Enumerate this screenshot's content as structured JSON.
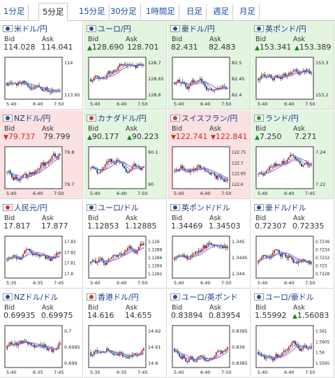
{
  "tabs": [
    "1分足",
    "5分足",
    "15分足",
    "30分足",
    "1時間足",
    "日足",
    "週足",
    "月足"
  ],
  "active_tab": 1,
  "bid_label": "Bid",
  "ask_label": "Ask",
  "cards": [
    {
      "title": "米ドル/円",
      "bid": "114.028",
      "ask": "114.041",
      "state": "none",
      "bid_arrow": "",
      "ask_arrow": "",
      "y_ticks": [
        "114",
        "113.95"
      ],
      "x_ticks": [
        "5:40",
        "6:40",
        "7:50"
      ],
      "flag": "us"
    },
    {
      "title": "ユーロ/円",
      "bid": "128.690",
      "ask": "128.701",
      "state": "up",
      "bid_arrow": "up",
      "ask_arrow": "",
      "y_ticks": [
        "128.7",
        "128.65",
        "128.6"
      ],
      "x_ticks": [
        "5:40",
        "6:40",
        "7:50"
      ],
      "flag": "eu"
    },
    {
      "title": "豪ドル/円",
      "bid": "82.431",
      "ask": "82.483",
      "state": "up",
      "bid_arrow": "",
      "ask_arrow": "",
      "y_ticks": [
        "82.5",
        "82.45",
        "82.4"
      ],
      "x_ticks": [
        "5:40",
        "6:40",
        "7:50"
      ],
      "flag": "au"
    },
    {
      "title": "英ポンド/円",
      "bid": "153.341",
      "ask": "153.389",
      "state": "up",
      "bid_arrow": "up",
      "ask_arrow": "up",
      "y_ticks": [
        "153.3",
        "153.2"
      ],
      "x_ticks": [
        "5:40",
        "6:40",
        "7:50"
      ],
      "flag": "gb"
    },
    {
      "title": "NZドル/円",
      "bid": "79.737",
      "ask": "79.799",
      "state": "down",
      "bid_arrow": "down",
      "ask_arrow": "",
      "y_ticks": [
        "79.8",
        "79.7"
      ],
      "x_ticks": [
        "5:40",
        "6:40",
        "7:50"
      ],
      "flag": "nz"
    },
    {
      "title": "カナダドル/円",
      "bid": "90.177",
      "ask": "90.223",
      "state": "up",
      "bid_arrow": "up",
      "ask_arrow": "up",
      "y_ticks": [
        "90.1",
        "90"
      ],
      "x_ticks": [
        "5:40",
        "6:40",
        "7:50"
      ],
      "flag": "ca"
    },
    {
      "title": "スイスフラン/円",
      "bid": "122.741",
      "ask": "122.841",
      "state": "down",
      "bid_arrow": "down",
      "ask_arrow": "down",
      "y_ticks": [
        "122.75",
        "122.7",
        "122.65",
        "122.6"
      ],
      "x_ticks": [
        "5:40",
        "6:40",
        "7:50"
      ],
      "flag": "ch"
    },
    {
      "title": "ランド/円",
      "bid": "7.250",
      "ask": "7.271",
      "state": "up",
      "bid_arrow": "up",
      "ask_arrow": "",
      "y_ticks": [
        "7.24",
        "7.22"
      ],
      "x_ticks": [
        "5:40",
        "6:40",
        "7:45"
      ],
      "flag": "za"
    },
    {
      "title": "人民元/円",
      "bid": "17.817",
      "ask": "17.877",
      "state": "none",
      "bid_arrow": "",
      "ask_arrow": "",
      "y_ticks": [
        "17.83",
        "17.82",
        "17.81",
        "17.8"
      ],
      "x_ticks": [
        "5:35",
        "6:35",
        "7:45"
      ],
      "flag": "cn"
    },
    {
      "title": "ユーロ/ドル",
      "bid": "1.12853",
      "ask": "1.12885",
      "state": "none",
      "bid_arrow": "",
      "ask_arrow": "",
      "y_ticks": [
        "1.129",
        "1.1288",
        "1.1286",
        "1.1284",
        "1.1282"
      ],
      "x_ticks": [
        "5:40",
        "6:40",
        "7:50"
      ],
      "flag": "eu"
    },
    {
      "title": "英ポンド/ドル",
      "bid": "1.34469",
      "ask": "1.34503",
      "state": "none",
      "bid_arrow": "",
      "ask_arrow": "",
      "y_ticks": [
        "1.345",
        "1.3445",
        "1.344"
      ],
      "x_ticks": [
        "5:40",
        "6:40",
        "7:50"
      ],
      "flag": "gb"
    },
    {
      "title": "豪ドル/ドル",
      "bid": "0.72307",
      "ask": "0.72335",
      "state": "none",
      "bid_arrow": "",
      "ask_arrow": "",
      "y_ticks": [
        "0.7236",
        "0.7234",
        "0.7232",
        "0.723",
        "0.7228"
      ],
      "x_ticks": [
        "5:40",
        "6:40",
        "7:50"
      ],
      "flag": "au"
    },
    {
      "title": "NZドル/ドル",
      "bid": "0.69935",
      "ask": "0.69975",
      "state": "none",
      "bid_arrow": "",
      "ask_arrow": "",
      "y_ticks": [
        "0.7",
        "0.6995",
        "0.699"
      ],
      "x_ticks": [
        "5:40",
        "6:35",
        "7:45"
      ],
      "flag": "nz"
    },
    {
      "title": "香港ドル/円",
      "bid": "14.616",
      "ask": "14.655",
      "state": "none",
      "bid_arrow": "",
      "ask_arrow": "",
      "y_ticks": [
        "14.62",
        "14.61",
        "14.6"
      ],
      "x_ticks": [
        "5:35",
        "6:35",
        "7:45"
      ],
      "flag": "hk"
    },
    {
      "title": "ユーロ/英ポンド",
      "bid": "0.83894",
      "ask": "0.83954",
      "state": "none",
      "bid_arrow": "",
      "ask_arrow": "",
      "y_ticks": [
        "0.8395",
        "0.839",
        "0.8385"
      ],
      "x_ticks": [
        "5:40",
        "6:40",
        "7:50"
      ],
      "flag": "eu"
    },
    {
      "title": "ユーロ/豪ドル",
      "bid": "1.55992",
      "ask": "1.56083",
      "state": "none",
      "bid_arrow": "",
      "ask_arrow": "up",
      "y_ticks": [
        "1.561",
        "1.5605",
        "1.56",
        "1.5595"
      ],
      "x_ticks": [
        "5:40",
        "6:40",
        "7:50"
      ],
      "flag": "eu"
    }
  ]
}
